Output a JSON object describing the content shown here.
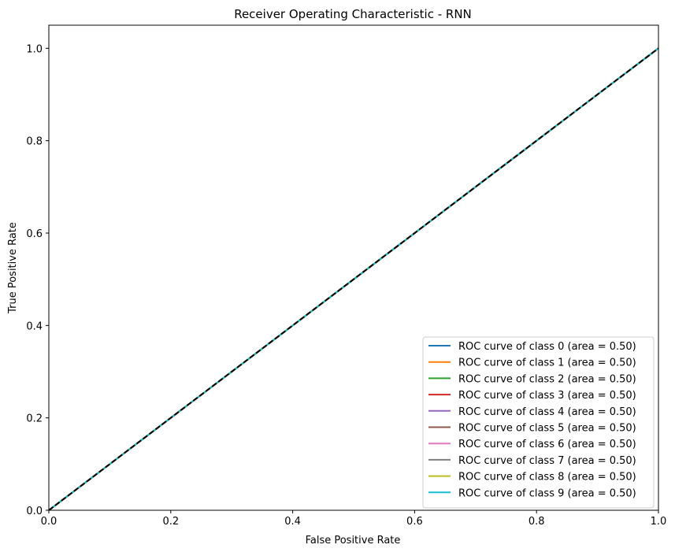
{
  "chart_data": {
    "type": "line",
    "title": "Receiver Operating Characteristic - RNN",
    "xlabel": "False Positive Rate",
    "ylabel": "True Positive Rate",
    "xlim": [
      0.0,
      1.0
    ],
    "ylim": [
      0.0,
      1.05
    ],
    "xticks": [
      0.0,
      0.2,
      0.4,
      0.6,
      0.8,
      1.0
    ],
    "yticks": [
      0.0,
      0.2,
      0.4,
      0.6,
      0.8,
      1.0
    ],
    "xtick_labels": [
      "0.0",
      "0.2",
      "0.4",
      "0.6",
      "0.8",
      "1.0"
    ],
    "ytick_labels": [
      "0.0",
      "0.2",
      "0.4",
      "0.6",
      "0.8",
      "1.0"
    ],
    "grid": false,
    "legend_position": "lower-right",
    "series": [
      {
        "name": "ROC curve of class 0 (area = 0.50)",
        "color": "#1f77b4",
        "x": [
          0,
          1
        ],
        "y": [
          0,
          1
        ]
      },
      {
        "name": "ROC curve of class 1 (area = 0.50)",
        "color": "#ff7f0e",
        "x": [
          0,
          1
        ],
        "y": [
          0,
          1
        ]
      },
      {
        "name": "ROC curve of class 2 (area = 0.50)",
        "color": "#2ca02c",
        "x": [
          0,
          1
        ],
        "y": [
          0,
          1
        ]
      },
      {
        "name": "ROC curve of class 3 (area = 0.50)",
        "color": "#d62728",
        "x": [
          0,
          1
        ],
        "y": [
          0,
          1
        ]
      },
      {
        "name": "ROC curve of class 4 (area = 0.50)",
        "color": "#9467bd",
        "x": [
          0,
          1
        ],
        "y": [
          0,
          1
        ]
      },
      {
        "name": "ROC curve of class 5 (area = 0.50)",
        "color": "#8c564b",
        "x": [
          0,
          1
        ],
        "y": [
          0,
          1
        ]
      },
      {
        "name": "ROC curve of class 6 (area = 0.50)",
        "color": "#e377c2",
        "x": [
          0,
          1
        ],
        "y": [
          0,
          1
        ]
      },
      {
        "name": "ROC curve of class 7 (area = 0.50)",
        "color": "#7f7f7f",
        "x": [
          0,
          1
        ],
        "y": [
          0,
          1
        ]
      },
      {
        "name": "ROC curve of class 8 (area = 0.50)",
        "color": "#bcbd22",
        "x": [
          0,
          1
        ],
        "y": [
          0,
          1
        ]
      },
      {
        "name": "ROC curve of class 9 (area = 0.50)",
        "color": "#17becf",
        "x": [
          0,
          1
        ],
        "y": [
          0,
          1
        ]
      }
    ],
    "reference_line": {
      "x": [
        0,
        1
      ],
      "y": [
        0,
        1
      ],
      "color": "#000000",
      "style": "dashed"
    }
  }
}
